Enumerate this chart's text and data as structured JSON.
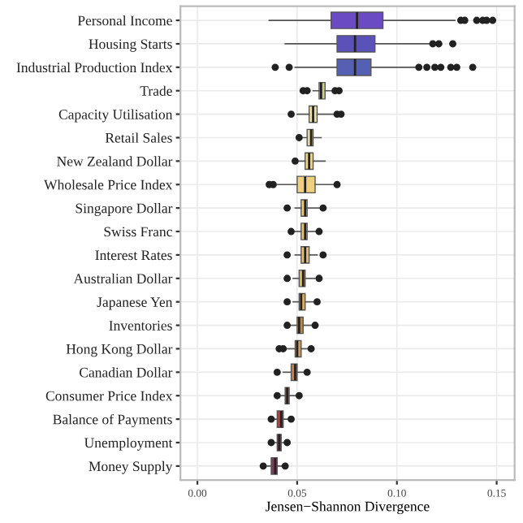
{
  "chart_data": {
    "type": "box",
    "orientation": "horizontal",
    "xlabel": "Jensen−Shannon Divergence",
    "categories": [
      "Personal Income",
      "Housing Starts",
      "Industrial Production Index",
      "Trade",
      "Capacity Utilisation",
      "Retail Sales",
      "New Zealand Dollar",
      "Wholesale Price Index",
      "Singapore Dollar",
      "Swiss Franc",
      "Interest Rates",
      "Australian Dollar",
      "Japanese Yen",
      "Inventories",
      "Hong Kong Dollar",
      "Canadian Dollar",
      "Consumer Price Index",
      "Balance of Payments",
      "Unemployment",
      "Money Supply"
    ],
    "colors": [
      "#6a4bc4",
      "#5a52b8",
      "#5560b5",
      "#c8d08a",
      "#eee29a",
      "#e8d890",
      "#e9d590",
      "#f0d080",
      "#edc878",
      "#e8c070",
      "#e6c070",
      "#dfb86c",
      "#dab068",
      "#b88a50",
      "#d09a5a",
      "#c8804c",
      "#b85a48",
      "#a04848",
      "#8a4050",
      "#803c58"
    ],
    "boxes": [
      {
        "low": 0.036,
        "q1": 0.067,
        "median": 0.08,
        "q3": 0.093,
        "high": 0.129,
        "outliers": [
          0.132,
          0.134,
          0.14,
          0.143,
          0.145,
          0.148
        ]
      },
      {
        "low": 0.044,
        "q1": 0.07,
        "median": 0.079,
        "q3": 0.089,
        "high": 0.117,
        "outliers": [
          0.118,
          0.121,
          0.128
        ]
      },
      {
        "low": 0.049,
        "q1": 0.07,
        "median": 0.079,
        "q3": 0.087,
        "high": 0.11,
        "outliers": [
          0.039,
          0.046,
          0.111,
          0.115,
          0.119,
          0.122,
          0.127,
          0.13,
          0.138
        ]
      },
      {
        "low": 0.058,
        "q1": 0.061,
        "median": 0.062,
        "q3": 0.064,
        "high": 0.067,
        "outliers": [
          0.053,
          0.055,
          0.069,
          0.071
        ]
      },
      {
        "low": 0.05,
        "q1": 0.056,
        "median": 0.058,
        "q3": 0.06,
        "high": 0.068,
        "outliers": [
          0.047,
          0.07,
          0.072
        ]
      },
      {
        "low": 0.053,
        "q1": 0.055,
        "median": 0.057,
        "q3": 0.058,
        "high": 0.062,
        "outliers": [
          0.051
        ]
      },
      {
        "low": 0.051,
        "q1": 0.054,
        "median": 0.056,
        "q3": 0.058,
        "high": 0.064,
        "outliers": [
          0.049
        ]
      },
      {
        "low": 0.04,
        "q1": 0.05,
        "median": 0.054,
        "q3": 0.059,
        "high": 0.068,
        "outliers": [
          0.036,
          0.038,
          0.07
        ]
      },
      {
        "low": 0.049,
        "q1": 0.052,
        "median": 0.054,
        "q3": 0.055,
        "high": 0.061,
        "outliers": [
          0.045,
          0.063
        ]
      },
      {
        "low": 0.049,
        "q1": 0.052,
        "median": 0.054,
        "q3": 0.055,
        "high": 0.06,
        "outliers": [
          0.047,
          0.061
        ]
      },
      {
        "low": 0.049,
        "q1": 0.052,
        "median": 0.054,
        "q3": 0.056,
        "high": 0.06,
        "outliers": [
          0.045,
          0.063
        ]
      },
      {
        "low": 0.048,
        "q1": 0.051,
        "median": 0.053,
        "q3": 0.054,
        "high": 0.059,
        "outliers": [
          0.045,
          0.061
        ]
      },
      {
        "low": 0.048,
        "q1": 0.051,
        "median": 0.052,
        "q3": 0.054,
        "high": 0.058,
        "outliers": [
          0.045,
          0.06
        ]
      },
      {
        "low": 0.047,
        "q1": 0.05,
        "median": 0.051,
        "q3": 0.053,
        "high": 0.057,
        "outliers": [
          0.045,
          0.059
        ]
      },
      {
        "low": 0.045,
        "q1": 0.049,
        "median": 0.05,
        "q3": 0.052,
        "high": 0.055,
        "outliers": [
          0.041,
          0.043,
          0.057
        ]
      },
      {
        "low": 0.043,
        "q1": 0.047,
        "median": 0.049,
        "q3": 0.05,
        "high": 0.054,
        "outliers": [
          0.04,
          0.055
        ]
      },
      {
        "low": 0.042,
        "q1": 0.044,
        "median": 0.045,
        "q3": 0.046,
        "high": 0.049,
        "outliers": [
          0.04,
          0.051
        ]
      },
      {
        "low": 0.039,
        "q1": 0.04,
        "median": 0.042,
        "q3": 0.043,
        "high": 0.046,
        "outliers": [
          0.037,
          0.047
        ]
      },
      {
        "low": 0.039,
        "q1": 0.04,
        "median": 0.041,
        "q3": 0.042,
        "high": 0.044,
        "outliers": [
          0.037,
          0.045
        ]
      },
      {
        "low": 0.035,
        "q1": 0.037,
        "median": 0.039,
        "q3": 0.04,
        "high": 0.043,
        "outliers": [
          0.033,
          0.044
        ]
      }
    ],
    "xlim": [
      -0.0085,
      0.159
    ],
    "xticks": [
      {
        "value": 0,
        "label": "0.00"
      },
      {
        "value": 0.05,
        "label": "0.05"
      },
      {
        "value": 0.1,
        "label": "0.10"
      },
      {
        "value": 0.15,
        "label": "0.15"
      }
    ],
    "grid": true
  }
}
